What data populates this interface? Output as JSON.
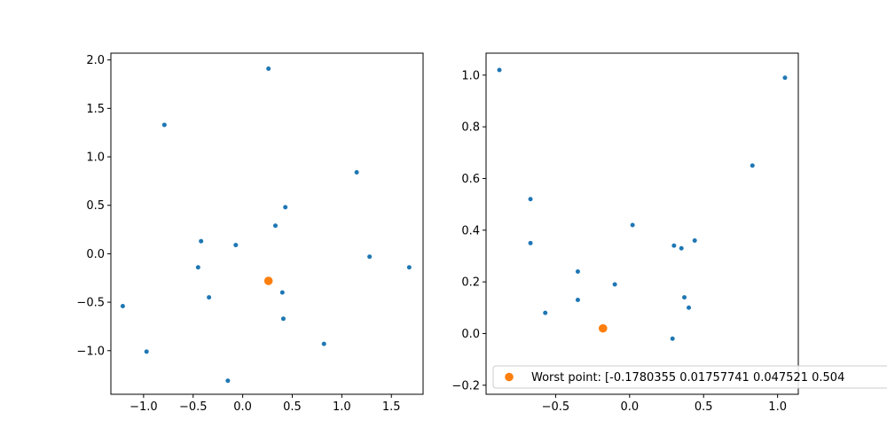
{
  "chart_data": [
    {
      "type": "scatter",
      "xlim": [
        -1.33,
        1.82
      ],
      "ylim": [
        -1.45,
        2.07
      ],
      "x_ticks": [
        "−1.0",
        "−0.5",
        "0.0",
        "0.5",
        "1.0",
        "1.5"
      ],
      "x_tick_values": [
        -1.0,
        -0.5,
        0.0,
        0.5,
        1.0,
        1.5
      ],
      "y_ticks": [
        "−1.0",
        "−0.5",
        "0.0",
        "0.5",
        "1.0",
        "1.5",
        "2.0"
      ],
      "y_tick_values": [
        -1.0,
        -0.5,
        0.0,
        0.5,
        1.0,
        1.5,
        2.0
      ],
      "grid": false,
      "series": [
        {
          "color": "#1f77b4",
          "marker_size": "small",
          "points": [
            [
              0.26,
              1.91
            ],
            [
              -0.79,
              1.33
            ],
            [
              1.15,
              0.84
            ],
            [
              0.43,
              0.48
            ],
            [
              0.33,
              0.29
            ],
            [
              -0.42,
              0.13
            ],
            [
              -0.07,
              0.09
            ],
            [
              1.28,
              -0.03
            ],
            [
              1.68,
              -0.14
            ],
            [
              -0.45,
              -0.14
            ],
            [
              0.4,
              -0.4
            ],
            [
              -0.34,
              -0.45
            ],
            [
              -1.21,
              -0.54
            ],
            [
              0.41,
              -0.67
            ],
            [
              0.82,
              -0.93
            ],
            [
              -0.97,
              -1.01
            ],
            [
              -0.15,
              -1.31
            ]
          ]
        },
        {
          "color": "#ff7f0e",
          "marker_size": "large",
          "points": [
            [
              0.26,
              -0.28
            ]
          ]
        }
      ]
    },
    {
      "type": "scatter",
      "xlim": [
        -0.97,
        1.14
      ],
      "ylim": [
        -0.235,
        1.085
      ],
      "x_ticks": [
        "−0.5",
        "0.0",
        "0.5",
        "1.0"
      ],
      "x_tick_values": [
        -0.5,
        0.0,
        0.5,
        1.0
      ],
      "y_ticks": [
        "−0.2",
        "0.0",
        "0.2",
        "0.4",
        "0.6",
        "0.8",
        "1.0"
      ],
      "y_tick_values": [
        -0.2,
        0.0,
        0.2,
        0.4,
        0.6,
        0.8,
        1.0
      ],
      "grid": false,
      "legend": {
        "placement": "lower-right",
        "label": "Worst point: [-0.1780355    0.01757741  0.047521     0.504"
      },
      "series": [
        {
          "color": "#1f77b4",
          "marker_size": "small",
          "points": [
            [
              -0.88,
              1.02
            ],
            [
              1.05,
              0.99
            ],
            [
              0.83,
              0.65
            ],
            [
              -0.67,
              0.52
            ],
            [
              0.02,
              0.42
            ],
            [
              -0.67,
              0.35
            ],
            [
              0.44,
              0.36
            ],
            [
              0.3,
              0.34
            ],
            [
              0.35,
              0.33
            ],
            [
              -0.35,
              0.24
            ],
            [
              -0.1,
              0.19
            ],
            [
              0.37,
              0.14
            ],
            [
              -0.35,
              0.13
            ],
            [
              0.4,
              0.1
            ],
            [
              -0.57,
              0.08
            ],
            [
              0.29,
              -0.02
            ]
          ]
        },
        {
          "color": "#ff7f0e",
          "marker_size": "large",
          "points": [
            [
              -0.18,
              0.02
            ]
          ],
          "legend_entry": true
        }
      ]
    }
  ]
}
